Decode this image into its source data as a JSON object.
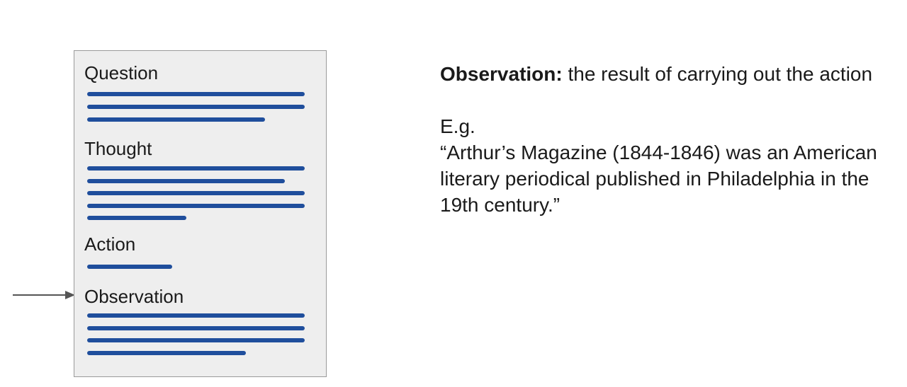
{
  "colors": {
    "text_line": "#1f4e9c",
    "arrow": "#555555",
    "panel_bg": "#eeeeee",
    "panel_border": "#9a9a9a"
  },
  "panel": {
    "sections": [
      {
        "label": "Question",
        "line_count": 3
      },
      {
        "label": "Thought",
        "line_count": 5
      },
      {
        "label": "Action",
        "line_count": 1
      },
      {
        "label": "Observation",
        "line_count": 4
      }
    ]
  },
  "explanation": {
    "term": "Observation:",
    "definition": " the result of carrying out the action",
    "example_prefix": "E.g.",
    "example_text": "“Arthur’s Magazine (1844-1846) was an American literary periodical published in Philadelphia in the 19th century.”"
  }
}
